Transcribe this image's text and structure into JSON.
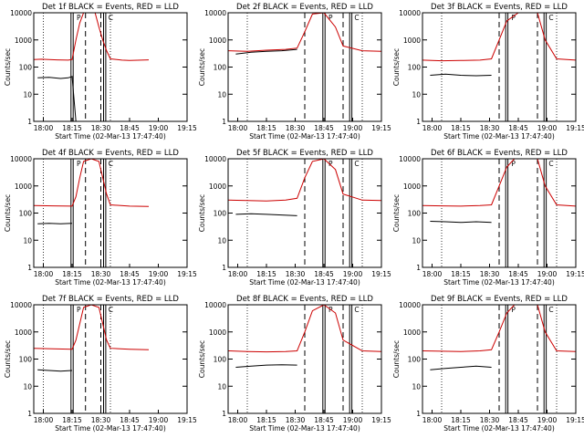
{
  "chart_data": [
    {
      "type": "line",
      "title": "Det 1f BLACK = Events, RED = LLD",
      "xlabel": "Start Time (02-Mar-13 17:47:40)",
      "ylabel": "Counts/sec",
      "yscale": "log",
      "ylim": [
        1,
        10000
      ],
      "xlim_minutes": [
        -10,
        30
      ],
      "xtick_labels": [
        "18:00",
        "18:15",
        "18:30",
        "18:45",
        "19:00",
        "19:15"
      ],
      "ytick_labels": [
        "1",
        "10",
        "100",
        "1000",
        "10000"
      ],
      "series": [
        {
          "color": "#cc0000",
          "points": [
            [
              -10,
              190
            ],
            [
              -8,
              195
            ],
            [
              -4,
              185
            ],
            [
              -1,
              180
            ],
            [
              0,
              190
            ],
            [
              1,
              1000
            ],
            [
              2,
              4200
            ],
            [
              3,
              10000
            ],
            [
              6,
              10000
            ],
            [
              7,
              3000
            ],
            [
              8,
              1000
            ],
            [
              9,
              400
            ],
            [
              10,
              200
            ],
            [
              13,
              180
            ],
            [
              15,
              175
            ],
            [
              18,
              180
            ],
            [
              20,
              185
            ]
          ]
        },
        {
          "color": "#000000",
          "points": [
            [
              -9,
              40
            ],
            [
              -6,
              42
            ],
            [
              -3,
              38
            ],
            [
              -1,
              40
            ],
            [
              0,
              45
            ],
            [
              1,
              1
            ]
          ]
        }
      ],
      "vlines_dotted": [
        -7.5,
        10
      ],
      "vlines_dashed": [
        3.5,
        7.5
      ],
      "vlines_double": [
        0,
        8.5
      ],
      "markers": [
        "P",
        "C"
      ]
    },
    {
      "type": "line",
      "title": "Det 2f BLACK = Events, RED = LLD",
      "xlabel": "Start Time (02-Mar-13 17:47:40)",
      "ylabel": "Counts/sec",
      "yscale": "log",
      "ylim": [
        1,
        10000
      ],
      "xtick_labels": [
        "18:00",
        "18:15",
        "18:30",
        "18:45",
        "19:00",
        "19:15"
      ],
      "ytick_labels": [
        "1",
        "10",
        "100",
        "1000",
        "10000"
      ],
      "series": [
        {
          "color": "#cc0000",
          "points": [
            [
              -10,
              400
            ],
            [
              -5,
              380
            ],
            [
              0,
              420
            ],
            [
              5,
              450
            ],
            [
              8,
              500
            ],
            [
              10,
              2000
            ],
            [
              12,
              9000
            ],
            [
              15,
              10000
            ],
            [
              18,
              3000
            ],
            [
              20,
              600
            ],
            [
              25,
              400
            ],
            [
              30,
              380
            ]
          ]
        },
        {
          "color": "#000000",
          "points": [
            [
              -8,
              300
            ],
            [
              -4,
              350
            ],
            [
              0,
              380
            ],
            [
              4,
              400
            ],
            [
              8,
              450
            ]
          ]
        }
      ],
      "vlines_dotted": [
        -5,
        25
      ],
      "vlines_dashed": [
        10,
        20
      ],
      "vlines_double": [
        15,
        22
      ],
      "markers": [
        "P",
        "C"
      ]
    },
    {
      "type": "line",
      "title": "Det 3f BLACK = Events, RED = LLD",
      "xlabel": "Start Time (02-Mar-13 17:47:40)",
      "ylabel": "Counts/sec",
      "yscale": "log",
      "ylim": [
        1,
        10000
      ],
      "xtick_labels": [
        "18:00",
        "18:15",
        "18:30",
        "18:45",
        "19:00",
        "19:15"
      ],
      "ytick_labels": [
        "1",
        "10",
        "100",
        "1000",
        "10000"
      ],
      "series": [
        {
          "color": "#cc0000",
          "points": [
            [
              -10,
              180
            ],
            [
              -5,
              170
            ],
            [
              0,
              175
            ],
            [
              5,
              180
            ],
            [
              8,
              200
            ],
            [
              10,
              1000
            ],
            [
              12,
              5000
            ],
            [
              15,
              10000
            ],
            [
              20,
              10000
            ],
            [
              22,
              1000
            ],
            [
              25,
              200
            ],
            [
              30,
              180
            ]
          ]
        },
        {
          "color": "#000000",
          "points": [
            [
              -8,
              50
            ],
            [
              -4,
              55
            ],
            [
              0,
              50
            ],
            [
              4,
              48
            ],
            [
              8,
              50
            ]
          ]
        }
      ],
      "vlines_dotted": [
        -5,
        25
      ],
      "vlines_dashed": [
        10,
        20
      ],
      "vlines_double": [
        12,
        22
      ],
      "markers": [
        "P",
        "C"
      ]
    },
    {
      "type": "line",
      "title": "Det 4f BLACK = Events, RED = LLD",
      "xlabel": "Start Time (02-Mar-13 17:47:40)",
      "ylabel": "Counts/sec",
      "yscale": "log",
      "ylim": [
        1,
        10000
      ],
      "xtick_labels": [
        "18:00",
        "18:15",
        "18:30",
        "18:45",
        "19:00",
        "19:15"
      ],
      "ytick_labels": [
        "1",
        "10",
        "100",
        "1000",
        "10000"
      ],
      "series": [
        {
          "color": "#cc0000",
          "points": [
            [
              -10,
              190
            ],
            [
              -5,
              185
            ],
            [
              0,
              180
            ],
            [
              1,
              400
            ],
            [
              2,
              2000
            ],
            [
              3,
              8000
            ],
            [
              5,
              10000
            ],
            [
              7,
              8000
            ],
            [
              8,
              2000
            ],
            [
              9,
              500
            ],
            [
              10,
              200
            ],
            [
              15,
              180
            ],
            [
              20,
              175
            ]
          ]
        },
        {
          "color": "#000000",
          "points": [
            [
              -9,
              40
            ],
            [
              -6,
              42
            ],
            [
              -3,
              40
            ],
            [
              0,
              42
            ]
          ]
        }
      ],
      "vlines_dotted": [
        -7.5,
        10
      ],
      "vlines_dashed": [
        3.5,
        7.5
      ],
      "vlines_double": [
        0,
        8.5
      ],
      "markers": [
        "P",
        "C"
      ]
    },
    {
      "type": "line",
      "title": "Det 5f BLACK = Events, RED = LLD",
      "xlabel": "Start Time (02-Mar-13 17:47:40)",
      "ylabel": "Counts/sec",
      "yscale": "log",
      "ylim": [
        1,
        10000
      ],
      "xtick_labels": [
        "18:00",
        "18:15",
        "18:30",
        "18:45",
        "19:00",
        "19:15"
      ],
      "ytick_labels": [
        "1",
        "10",
        "100",
        "1000",
        "10000"
      ],
      "series": [
        {
          "color": "#cc0000",
          "points": [
            [
              -10,
              300
            ],
            [
              -5,
              290
            ],
            [
              0,
              280
            ],
            [
              5,
              300
            ],
            [
              8,
              350
            ],
            [
              10,
              2000
            ],
            [
              12,
              8000
            ],
            [
              15,
              10000
            ],
            [
              18,
              4000
            ],
            [
              20,
              500
            ],
            [
              25,
              300
            ],
            [
              30,
              290
            ]
          ]
        },
        {
          "color": "#000000",
          "points": [
            [
              -8,
              90
            ],
            [
              -4,
              95
            ],
            [
              0,
              90
            ],
            [
              4,
              85
            ],
            [
              8,
              80
            ]
          ]
        }
      ],
      "vlines_dotted": [
        -5,
        25
      ],
      "vlines_dashed": [
        10,
        20
      ],
      "vlines_double": [
        15,
        22
      ],
      "markers": [
        "P",
        "C"
      ]
    },
    {
      "type": "line",
      "title": "Det 6f BLACK = Events, RED = LLD",
      "xlabel": "Start Time (02-Mar-13 17:47:40)",
      "ylabel": "Counts/sec",
      "yscale": "log",
      "ylim": [
        1,
        10000
      ],
      "xtick_labels": [
        "18:00",
        "18:15",
        "18:30",
        "18:45",
        "19:00",
        "19:15"
      ],
      "ytick_labels": [
        "1",
        "10",
        "100",
        "1000",
        "10000"
      ],
      "series": [
        {
          "color": "#cc0000",
          "points": [
            [
              -10,
              190
            ],
            [
              -5,
              185
            ],
            [
              0,
              180
            ],
            [
              5,
              190
            ],
            [
              8,
              200
            ],
            [
              10,
              1000
            ],
            [
              12,
              5000
            ],
            [
              14,
              10000
            ],
            [
              20,
              10000
            ],
            [
              22,
              1000
            ],
            [
              25,
              200
            ],
            [
              30,
              180
            ]
          ]
        },
        {
          "color": "#000000",
          "points": [
            [
              -8,
              50
            ],
            [
              -4,
              48
            ],
            [
              0,
              45
            ],
            [
              4,
              48
            ],
            [
              8,
              45
            ]
          ]
        }
      ],
      "vlines_dotted": [
        -5,
        25
      ],
      "vlines_dashed": [
        10,
        20
      ],
      "vlines_double": [
        12,
        22
      ],
      "markers": [
        "P",
        "C"
      ]
    },
    {
      "type": "line",
      "title": "Det 7f BLACK = Events, RED = LLD",
      "xlabel": "Start Time (02-Mar-13 17:47:40)",
      "ylabel": "Counts/sec",
      "yscale": "log",
      "ylim": [
        1,
        10000
      ],
      "xtick_labels": [
        "18:00",
        "18:15",
        "18:30",
        "18:45",
        "19:00",
        "19:15"
      ],
      "ytick_labels": [
        "1",
        "10",
        "100",
        "1000",
        "10000"
      ],
      "series": [
        {
          "color": "#cc0000",
          "points": [
            [
              -10,
              250
            ],
            [
              -5,
              240
            ],
            [
              0,
              230
            ],
            [
              1,
              500
            ],
            [
              2,
              2000
            ],
            [
              3,
              8000
            ],
            [
              5,
              10000
            ],
            [
              7,
              8000
            ],
            [
              8,
              2000
            ],
            [
              9,
              500
            ],
            [
              10,
              250
            ],
            [
              15,
              230
            ],
            [
              20,
              220
            ]
          ]
        },
        {
          "color": "#000000",
          "points": [
            [
              -9,
              40
            ],
            [
              -6,
              38
            ],
            [
              -3,
              36
            ],
            [
              0,
              38
            ]
          ]
        }
      ],
      "vlines_dotted": [
        -7.5,
        10
      ],
      "vlines_dashed": [
        3.5,
        7.5
      ],
      "vlines_double": [
        0,
        8.5
      ],
      "markers": [
        "P",
        "C"
      ]
    },
    {
      "type": "line",
      "title": "Det 8f BLACK = Events, RED = LLD",
      "xlabel": "Start Time (02-Mar-13 17:47:40)",
      "ylabel": "Counts/sec",
      "yscale": "log",
      "ylim": [
        1,
        10000
      ],
      "xtick_labels": [
        "18:00",
        "18:15",
        "18:30",
        "18:45",
        "19:00",
        "19:15"
      ],
      "ytick_labels": [
        "1",
        "10",
        "100",
        "1000",
        "10000"
      ],
      "series": [
        {
          "color": "#cc0000",
          "points": [
            [
              -10,
              200
            ],
            [
              -5,
              190
            ],
            [
              0,
              185
            ],
            [
              5,
              190
            ],
            [
              8,
              200
            ],
            [
              10,
              1000
            ],
            [
              12,
              6000
            ],
            [
              15,
              10000
            ],
            [
              18,
              5000
            ],
            [
              20,
              500
            ],
            [
              25,
              200
            ],
            [
              30,
              190
            ]
          ]
        },
        {
          "color": "#000000",
          "points": [
            [
              -8,
              50
            ],
            [
              -4,
              55
            ],
            [
              0,
              60
            ],
            [
              4,
              62
            ],
            [
              8,
              60
            ]
          ]
        }
      ],
      "vlines_dotted": [
        -5,
        25
      ],
      "vlines_dashed": [
        10,
        20
      ],
      "vlines_double": [
        15,
        22
      ],
      "markers": [
        "P",
        "C"
      ]
    },
    {
      "type": "line",
      "title": "Det 9f BLACK = Events, RED = LLD",
      "xlabel": "Start Time (02-Mar-13 17:47:40)",
      "ylabel": "Counts/sec",
      "yscale": "log",
      "ylim": [
        1,
        10000
      ],
      "xtick_labels": [
        "18:00",
        "18:15",
        "18:30",
        "18:45",
        "19:00",
        "19:15"
      ],
      "ytick_labels": [
        "1",
        "10",
        "100",
        "1000",
        "10000"
      ],
      "series": [
        {
          "color": "#cc0000",
          "points": [
            [
              -10,
              200
            ],
            [
              -5,
              195
            ],
            [
              0,
              190
            ],
            [
              5,
              200
            ],
            [
              8,
              220
            ],
            [
              10,
              1000
            ],
            [
              12,
              5000
            ],
            [
              14,
              10000
            ],
            [
              20,
              10000
            ],
            [
              22,
              1000
            ],
            [
              25,
              200
            ],
            [
              30,
              190
            ]
          ]
        },
        {
          "color": "#000000",
          "points": [
            [
              -8,
              40
            ],
            [
              -4,
              45
            ],
            [
              0,
              50
            ],
            [
              4,
              55
            ],
            [
              8,
              50
            ]
          ]
        }
      ],
      "vlines_dotted": [
        -5,
        25
      ],
      "vlines_dashed": [
        10,
        20
      ],
      "vlines_double": [
        12,
        22
      ],
      "markers": [
        "P",
        "C"
      ]
    }
  ]
}
